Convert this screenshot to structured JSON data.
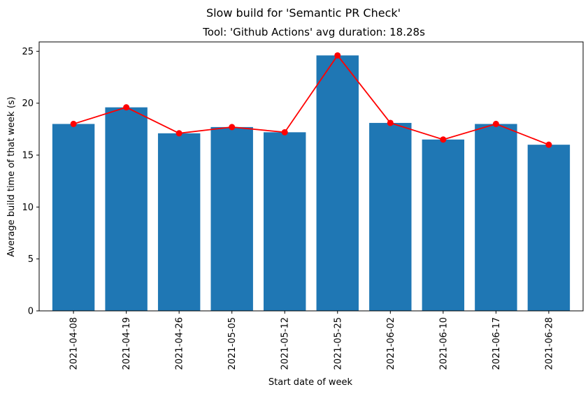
{
  "chart_data": {
    "type": "bar",
    "suptitle": "Slow build for 'Semantic PR Check'",
    "title": "Tool: 'Github Actions' avg duration: 18.28s",
    "xlabel": "Start date of week",
    "ylabel": "Average build time of that week (s)",
    "categories": [
      "2021-04-08",
      "2021-04-19",
      "2021-04-26",
      "2021-05-05",
      "2021-05-12",
      "2021-05-25",
      "2021-06-02",
      "2021-06-10",
      "2021-06-17",
      "2021-06-28"
    ],
    "series": [
      {
        "type": "bar",
        "values": [
          18.0,
          19.6,
          17.1,
          17.7,
          17.2,
          24.6,
          18.1,
          16.5,
          18.0,
          16.0
        ],
        "color": "#1f77b4"
      },
      {
        "type": "line",
        "values": [
          18.0,
          19.6,
          17.1,
          17.7,
          17.2,
          24.6,
          18.1,
          16.5,
          18.0,
          16.0
        ],
        "color": "#ff0000",
        "marker": "circle"
      }
    ],
    "ylim": [
      0,
      25.9
    ],
    "yticks": [
      0,
      5,
      10,
      15,
      20,
      25
    ],
    "grid": false,
    "legend": "none"
  }
}
